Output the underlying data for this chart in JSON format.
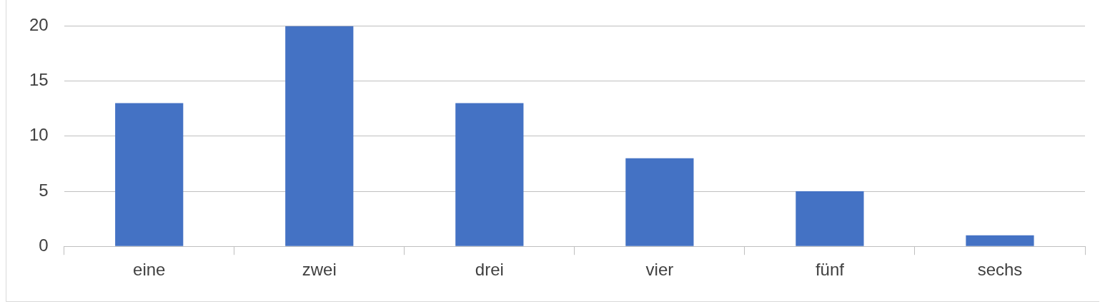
{
  "chart_data": {
    "type": "bar",
    "categories": [
      "eine",
      "zwei",
      "drei",
      "vier",
      "fünf",
      "sechs"
    ],
    "values": [
      13,
      20,
      13,
      8,
      5,
      1
    ],
    "color": "#4472c4",
    "ylim": [
      0,
      20
    ],
    "yticks": [
      0,
      5,
      10,
      15,
      20
    ],
    "grid": "y",
    "legend": false
  }
}
